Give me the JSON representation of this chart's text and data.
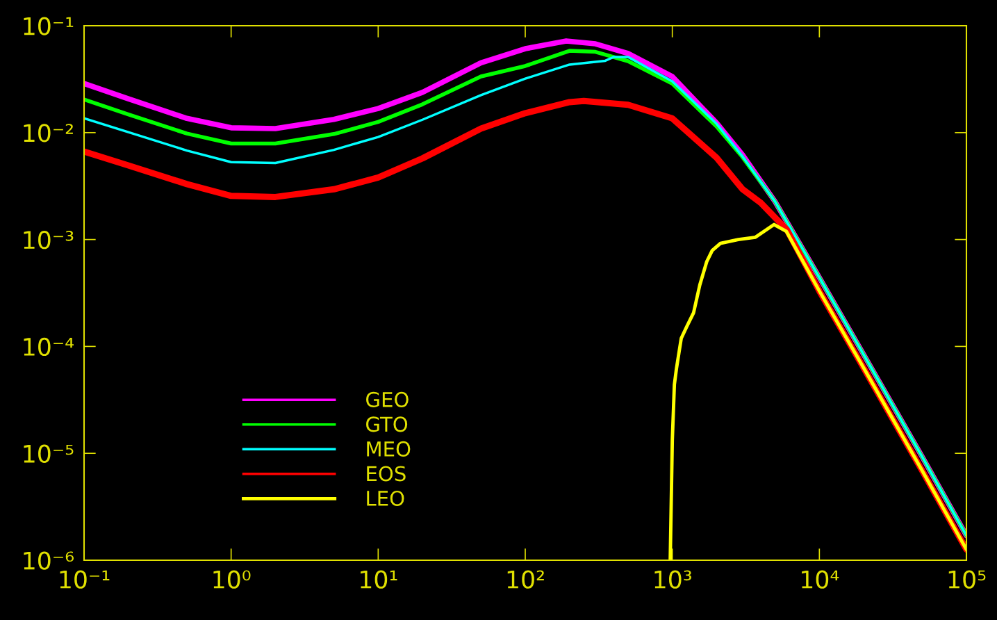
{
  "chart_data": {
    "type": "line",
    "log": "xy",
    "legend": "bottom left",
    "marker": "none",
    "line_style": "solid",
    "xlim": [
      0.1,
      100000
    ],
    "ylim": [
      1e-06,
      0.1
    ],
    "xticks": [
      {
        "value": 0.1,
        "label": "10⁻¹"
      },
      {
        "value": 1,
        "label": "10⁰"
      },
      {
        "value": 10,
        "label": "10¹"
      },
      {
        "value": 100,
        "label": "10²"
      },
      {
        "value": 1000,
        "label": "10³"
      },
      {
        "value": 10000,
        "label": "10⁴"
      },
      {
        "value": 100000,
        "label": "10⁵"
      }
    ],
    "yticks": [
      {
        "value": 1e-06,
        "label": "10⁻⁶"
      },
      {
        "value": 1e-05,
        "label": "10⁻⁵"
      },
      {
        "value": 0.0001,
        "label": "10⁻⁴"
      },
      {
        "value": 0.001,
        "label": "10⁻³"
      },
      {
        "value": 0.01,
        "label": "10⁻²"
      },
      {
        "value": 0.1,
        "label": "10⁻¹"
      }
    ],
    "series": [
      {
        "name": "GEO",
        "color": "#ff00ff",
        "x": [
          0.1,
          0.2,
          0.5,
          1,
          2,
          5,
          10,
          20,
          50,
          100,
          190,
          300,
          500,
          1000,
          2000,
          3000,
          5000,
          10000,
          20000,
          50000,
          100000
        ],
        "values": [
          0.0288,
          0.0207,
          0.0136,
          0.0111,
          0.0109,
          0.0133,
          0.0168,
          0.0238,
          0.045,
          0.061,
          0.072,
          0.0677,
          0.055,
          0.0335,
          0.0123,
          0.0062,
          0.00226,
          0.00044,
          8.4e-05,
          9.3e-06,
          1.7e-06
        ]
      },
      {
        "name": "GTO",
        "color": "#00ff00",
        "x": [
          0.1,
          0.2,
          0.5,
          1,
          2,
          5,
          10,
          20,
          50,
          100,
          200,
          300,
          500,
          1000,
          2000,
          3000,
          5000,
          10000,
          20000,
          50000,
          100000
        ],
        "values": [
          0.0204,
          0.0148,
          0.0098,
          0.0079,
          0.0079,
          0.0097,
          0.0126,
          0.0184,
          0.0335,
          0.042,
          0.0583,
          0.057,
          0.0466,
          0.0288,
          0.0114,
          0.0059,
          0.00226,
          0.00044,
          8.4e-05,
          9.3e-06,
          1.7e-06
        ]
      },
      {
        "name": "MEO",
        "color": "#00ffff",
        "x": [
          0.1,
          0.2,
          0.5,
          1,
          2,
          5,
          10,
          20,
          50,
          100,
          200,
          300,
          350,
          400,
          500,
          1000,
          2000,
          3000,
          5000,
          10000,
          20000,
          50000,
          100000
        ],
        "values": [
          0.0136,
          0.0101,
          0.0068,
          0.0053,
          0.0052,
          0.0069,
          0.0091,
          0.0132,
          0.0224,
          0.032,
          0.0433,
          0.0459,
          0.047,
          0.051,
          0.051,
          0.0302,
          0.0121,
          0.006,
          0.00226,
          0.00044,
          8.4e-05,
          9.3e-06,
          1.7e-06
        ]
      },
      {
        "name": "EOS",
        "color": "#ff0000",
        "x": [
          0.1,
          0.2,
          0.5,
          1,
          2,
          5,
          10,
          20,
          50,
          100,
          200,
          250,
          500,
          1000,
          2000,
          3000,
          4000,
          5000,
          6000,
          10000,
          20000,
          50000,
          100000
        ],
        "values": [
          0.00665,
          0.00493,
          0.0033,
          0.00256,
          0.0025,
          0.00295,
          0.0038,
          0.00574,
          0.0109,
          0.0152,
          0.0193,
          0.0198,
          0.0182,
          0.0136,
          0.00582,
          0.00296,
          0.0022,
          0.0016,
          0.00124,
          0.00033,
          6.3e-05,
          6.9e-06,
          1.26e-06
        ]
      },
      {
        "name": "LEO",
        "color": "#ffff00",
        "x": [
          968,
          1000,
          1033,
          1067,
          1150,
          1253,
          1396,
          1538,
          1714,
          1868,
          2124,
          2810,
          3675,
          4920,
          5970,
          10000,
          20000,
          50000,
          100000
        ],
        "values": [
          1e-06,
          1.33e-05,
          4.4e-05,
          6.2e-05,
          0.000119,
          0.000153,
          0.000207,
          0.000376,
          0.00062,
          0.00079,
          0.00092,
          0.001,
          0.00105,
          0.00138,
          0.00119,
          0.00033,
          6.3e-05,
          6.9e-06,
          1.26e-06
        ]
      }
    ]
  }
}
